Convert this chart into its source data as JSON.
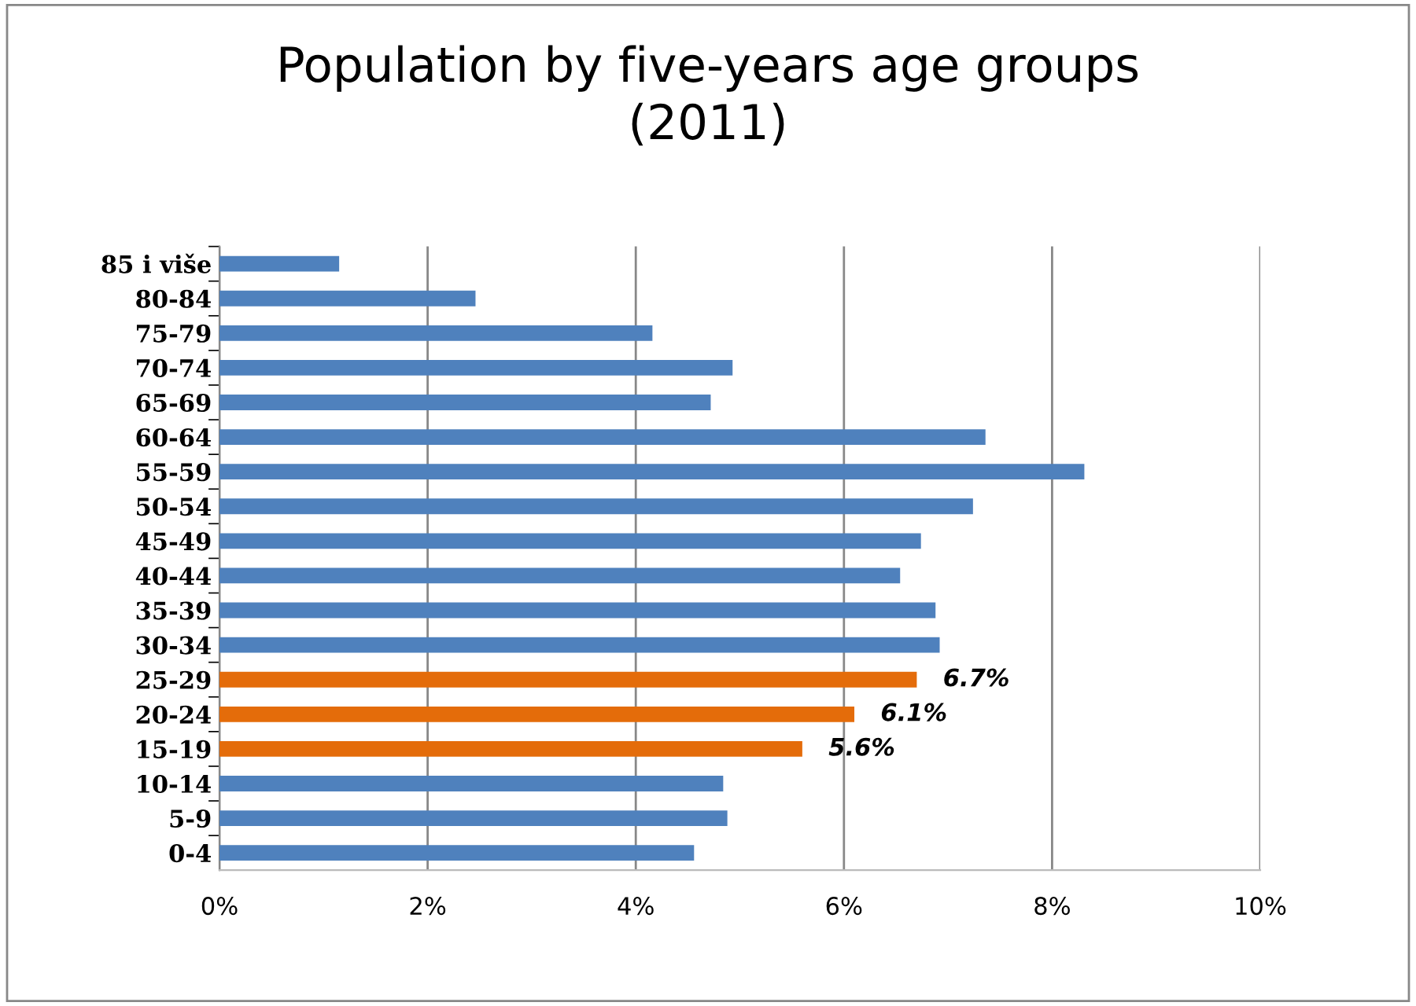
{
  "chart_data": {
    "type": "bar",
    "orientation": "horizontal",
    "title": "Population by five-years age groups\n(2011)",
    "categories": [
      "85 i više",
      "80-84",
      "75-79",
      "70-74",
      "65-69",
      "60-64",
      "55-59",
      "50-54",
      "45-49",
      "40-44",
      "35-39",
      "30-34",
      "25-29",
      "20-24",
      "15-19",
      "10-14",
      "5-9",
      "0-4"
    ],
    "values": [
      1.15,
      2.46,
      4.16,
      4.93,
      4.72,
      7.36,
      8.31,
      7.24,
      6.74,
      6.54,
      6.88,
      6.92,
      6.7,
      6.1,
      5.6,
      4.84,
      4.88,
      4.56
    ],
    "colors": [
      "#4f81bd",
      "#4f81bd",
      "#4f81bd",
      "#4f81bd",
      "#4f81bd",
      "#4f81bd",
      "#4f81bd",
      "#4f81bd",
      "#4f81bd",
      "#4f81bd",
      "#4f81bd",
      "#4f81bd",
      "#e46c0a",
      "#e46c0a",
      "#e46c0a",
      "#4f81bd",
      "#4f81bd",
      "#4f81bd"
    ],
    "value_labels": [
      null,
      null,
      null,
      null,
      null,
      null,
      null,
      null,
      null,
      null,
      null,
      null,
      "6.7%",
      "6.1%",
      "5.6%",
      null,
      null,
      null
    ],
    "xlim": [
      0,
      10
    ],
    "xticks": [
      {
        "value": 0,
        "label": "0%"
      },
      {
        "value": 2,
        "label": "2%"
      },
      {
        "value": 4,
        "label": "4%"
      },
      {
        "value": 6,
        "label": "6%"
      },
      {
        "value": 8,
        "label": "8%"
      },
      {
        "value": 10,
        "label": "10%"
      }
    ],
    "grid": "x",
    "legend": false
  }
}
